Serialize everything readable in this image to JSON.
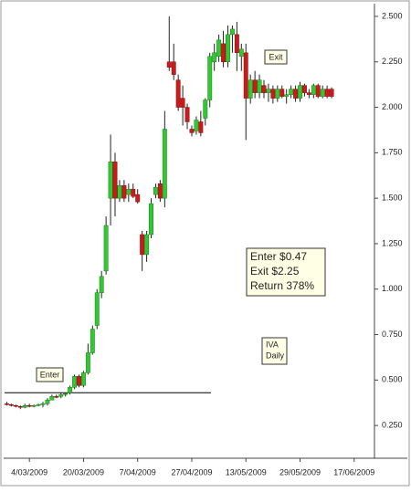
{
  "chart_data": {
    "type": "candlestick",
    "categories": [
      null,
      null,
      null,
      null,
      null,
      "4/03/2009",
      null,
      null,
      null,
      null,
      null,
      null,
      null,
      null,
      null,
      null,
      null,
      "20/03/2009",
      null,
      null,
      null,
      null,
      null,
      null,
      null,
      null,
      null,
      null,
      null,
      "7/04/2009",
      null,
      null,
      null,
      null,
      null,
      null,
      null,
      null,
      null,
      null,
      null,
      "27/04/2009",
      null,
      null,
      null,
      null,
      null,
      null,
      null,
      null,
      null,
      null,
      null,
      "13/05/2009",
      null,
      null,
      null,
      null,
      null,
      null,
      null,
      null,
      null,
      null,
      null,
      "29/05/2009",
      null,
      null,
      null,
      null,
      null,
      null,
      null,
      null,
      null,
      null,
      null,
      "17/06/2009"
    ],
    "open": [
      0.37,
      0.365,
      0.36,
      0.355,
      0.35,
      0.36,
      0.355,
      0.36,
      0.365,
      0.37,
      0.39,
      0.41,
      0.41,
      0.42,
      0.43,
      0.46,
      0.52,
      0.47,
      0.54,
      0.65,
      0.8,
      0.98,
      1.1,
      1.5,
      1.7,
      1.5,
      1.57,
      1.52,
      1.55,
      1.52,
      1.3,
      1.19,
      1.3,
      1.52,
      1.58,
      1.5,
      2.25,
      2.25,
      2.15,
      2.05,
      2.0,
      1.88,
      1.87,
      1.92,
      1.94,
      2.04,
      2.25,
      2.28,
      2.35,
      2.25,
      2.4,
      2.4,
      2.28,
      2.3,
      2.05,
      2.15,
      2.08,
      2.12,
      2.08,
      2.1,
      2.05,
      2.1,
      2.06,
      2.07,
      2.1,
      2.05,
      2.12,
      2.08,
      2.07,
      2.12,
      2.06,
      2.1,
      2.1,
      null,
      null,
      null,
      null,
      null
    ],
    "high": [
      0.38,
      0.37,
      0.365,
      0.36,
      0.37,
      0.37,
      0.365,
      0.37,
      0.38,
      0.4,
      0.42,
      0.42,
      0.43,
      0.43,
      0.47,
      0.53,
      0.53,
      0.55,
      0.7,
      0.8,
      1.0,
      1.1,
      1.4,
      1.85,
      1.75,
      1.6,
      1.6,
      1.58,
      1.58,
      1.55,
      1.32,
      1.32,
      1.5,
      1.58,
      1.6,
      1.98,
      2.5,
      2.35,
      2.18,
      2.12,
      2.02,
      1.9,
      1.95,
      1.98,
      2.05,
      2.3,
      2.35,
      2.4,
      2.42,
      2.45,
      2.45,
      2.47,
      2.35,
      2.35,
      2.18,
      2.2,
      2.18,
      2.15,
      2.13,
      2.12,
      2.12,
      2.12,
      2.1,
      2.12,
      2.12,
      2.14,
      2.13,
      2.1,
      2.13,
      2.13,
      2.12,
      2.12,
      2.11,
      null,
      null,
      null,
      null,
      null
    ],
    "low": [
      0.36,
      0.355,
      0.35,
      0.34,
      0.345,
      0.35,
      0.35,
      0.355,
      0.35,
      0.36,
      0.39,
      0.4,
      0.4,
      0.41,
      0.42,
      0.45,
      0.46,
      0.46,
      0.53,
      0.64,
      0.78,
      0.95,
      1.08,
      1.35,
      1.4,
      1.48,
      1.48,
      1.48,
      1.5,
      1.47,
      1.1,
      1.15,
      1.28,
      1.5,
      1.48,
      1.45,
      2.2,
      2.15,
      1.98,
      1.9,
      1.88,
      1.84,
      1.85,
      1.84,
      1.9,
      2.0,
      2.2,
      2.25,
      2.22,
      2.22,
      2.3,
      2.2,
      2.2,
      1.82,
      2.02,
      2.05,
      2.05,
      2.05,
      2.03,
      2.02,
      2.03,
      2.05,
      2.02,
      2.05,
      2.03,
      2.03,
      2.06,
      2.05,
      2.05,
      2.05,
      2.05,
      2.05,
      2.05,
      null,
      null,
      null,
      null,
      null
    ],
    "close": [
      0.365,
      0.36,
      0.355,
      0.35,
      0.36,
      0.355,
      0.36,
      0.365,
      0.37,
      0.39,
      0.41,
      0.405,
      0.42,
      0.425,
      0.46,
      0.52,
      0.47,
      0.54,
      0.65,
      0.78,
      0.98,
      1.07,
      1.35,
      1.7,
      1.5,
      1.57,
      1.5,
      1.55,
      1.51,
      1.48,
      1.19,
      1.3,
      1.47,
      1.56,
      1.5,
      1.88,
      2.22,
      2.18,
      2.0,
      2.0,
      1.92,
      1.86,
      1.93,
      1.86,
      2.04,
      2.28,
      2.3,
      2.37,
      2.25,
      2.4,
      2.43,
      2.3,
      2.32,
      2.05,
      2.15,
      2.08,
      2.15,
      2.08,
      2.1,
      2.05,
      2.1,
      2.06,
      2.07,
      2.1,
      2.05,
      2.12,
      2.08,
      2.07,
      2.12,
      2.06,
      2.1,
      2.06,
      2.06,
      null,
      null,
      null,
      null,
      null
    ],
    "up_color": "#33c833",
    "down_color": "#cc1a1a",
    "ylim": [
      0.07,
      2.565
    ],
    "yticks": [
      {
        "value": 0.25,
        "label": "0.250"
      },
      {
        "value": 0.5,
        "label": "0.500"
      },
      {
        "value": 0.75,
        "label": "0.750"
      },
      {
        "value": 1.0,
        "label": "1.000"
      },
      {
        "value": 1.25,
        "label": "1.250"
      },
      {
        "value": 1.5,
        "label": "1.500"
      },
      {
        "value": 1.75,
        "label": "1.750"
      },
      {
        "value": 2.0,
        "label": "2.000"
      },
      {
        "value": 2.25,
        "label": "2.250"
      },
      {
        "value": 2.5,
        "label": "2.500"
      }
    ],
    "ref_line": 0.43,
    "annotations": {
      "enter_label": "Enter",
      "exit_label": "Exit",
      "result": [
        "Enter $0.47",
        "Exit $2.25",
        "Return 378%"
      ],
      "symbol": [
        "IVA",
        "Daily"
      ]
    }
  }
}
